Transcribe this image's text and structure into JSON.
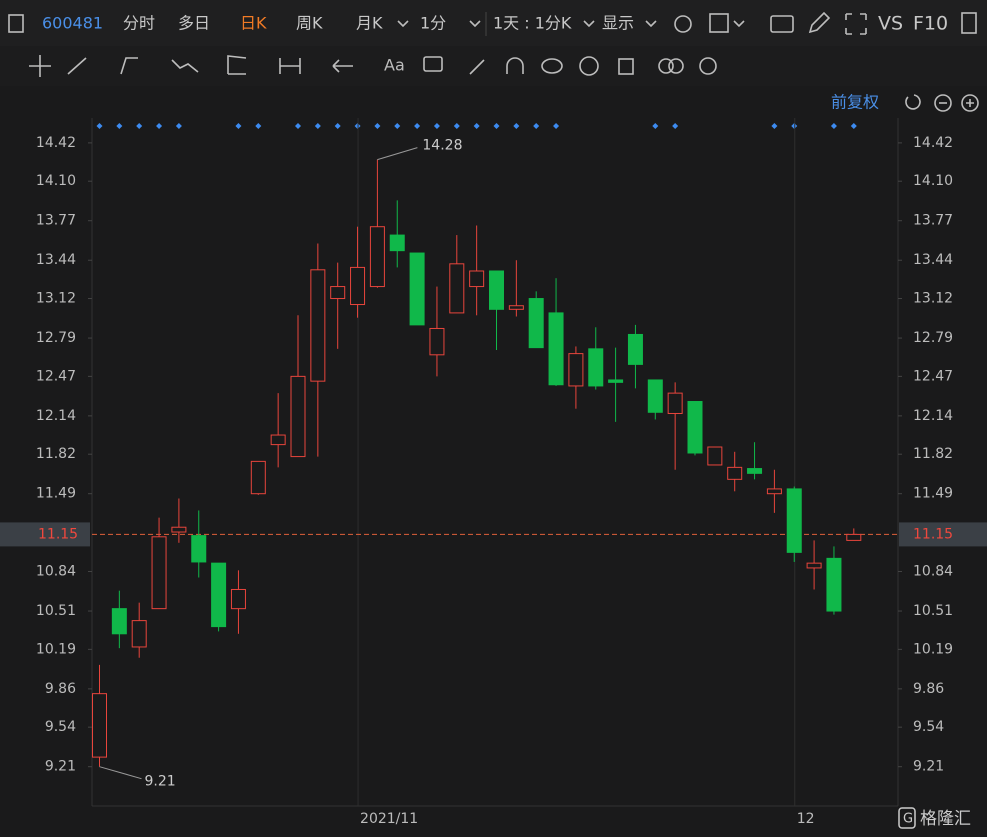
{
  "ui": {
    "code": "600481",
    "tabs": [
      "分时",
      "多日",
      "日K",
      "周K",
      "月K",
      "1分",
      "1天 : 1分K",
      "显示"
    ],
    "vs": "VS",
    "f10": "F10",
    "font_tool": "Aa",
    "adjust": "前复权",
    "watermark": "格隆汇"
  },
  "chart_data": {
    "type": "candlestick",
    "categories": [
      null,
      null,
      null,
      null,
      null,
      null,
      null,
      null,
      null,
      null,
      null,
      null,
      null,
      "2021/11",
      null,
      null,
      null,
      null,
      null,
      null,
      null,
      null,
      null,
      null,
      null,
      null,
      null,
      null,
      null,
      null,
      null,
      null,
      null,
      null,
      null,
      "12",
      null,
      null,
      null
    ],
    "open": [
      9.29,
      10.53,
      10.21,
      10.53,
      11.17,
      11.14,
      10.91,
      10.53,
      11.49,
      11.9,
      11.8,
      12.43,
      13.12,
      13.07,
      13.22,
      13.65,
      13.5,
      12.65,
      13.0,
      13.22,
      13.35,
      13.03,
      13.12,
      13.0,
      12.39,
      12.7,
      12.44,
      12.82,
      12.44,
      12.16,
      12.26,
      11.73,
      11.61,
      11.7,
      11.49,
      11.53,
      10.87,
      10.95,
      11.1
    ],
    "high": [
      10.06,
      10.68,
      10.58,
      11.29,
      11.45,
      11.35,
      10.91,
      10.85,
      11.76,
      12.33,
      12.98,
      13.58,
      13.42,
      13.72,
      14.28,
      13.94,
      13.5,
      13.22,
      13.65,
      13.73,
      13.35,
      13.44,
      13.18,
      13.29,
      12.72,
      12.88,
      12.71,
      12.9,
      12.44,
      12.42,
      12.26,
      11.88,
      11.84,
      11.92,
      11.69,
      11.55,
      11.1,
      11.05,
      11.2
    ],
    "low": [
      9.21,
      10.2,
      10.12,
      10.53,
      11.08,
      10.79,
      10.34,
      10.32,
      11.48,
      11.71,
      11.8,
      11.8,
      12.7,
      12.96,
      13.21,
      13.38,
      12.9,
      12.47,
      13.0,
      12.98,
      12.69,
      12.97,
      12.71,
      12.39,
      12.2,
      12.36,
      12.09,
      12.37,
      12.11,
      11.69,
      11.81,
      11.73,
      11.51,
      11.61,
      11.33,
      10.92,
      10.69,
      10.48,
      11.1
    ],
    "close": [
      9.82,
      10.32,
      10.43,
      11.13,
      11.21,
      10.92,
      10.38,
      10.69,
      11.76,
      11.98,
      12.47,
      13.36,
      13.22,
      13.38,
      13.72,
      13.52,
      12.9,
      12.87,
      13.41,
      13.35,
      13.03,
      13.06,
      12.71,
      12.4,
      12.66,
      12.39,
      12.42,
      12.57,
      12.17,
      12.33,
      11.83,
      11.88,
      11.71,
      11.66,
      11.53,
      11.0,
      10.91,
      10.51,
      11.15
    ],
    "up_color": "#e8453c",
    "down_color": "#10b84a",
    "max_label": 14.28,
    "min_label": 9.21,
    "last_price": 11.15,
    "ylim": [
      8.89,
      14.82
    ],
    "yticks": [
      9.21,
      9.54,
      9.86,
      10.19,
      10.51,
      10.84,
      11.49,
      11.82,
      12.14,
      12.47,
      12.79,
      13.12,
      13.44,
      13.77,
      {
        "value": 14.1,
        "label": "14.10"
      },
      14.42
    ]
  }
}
